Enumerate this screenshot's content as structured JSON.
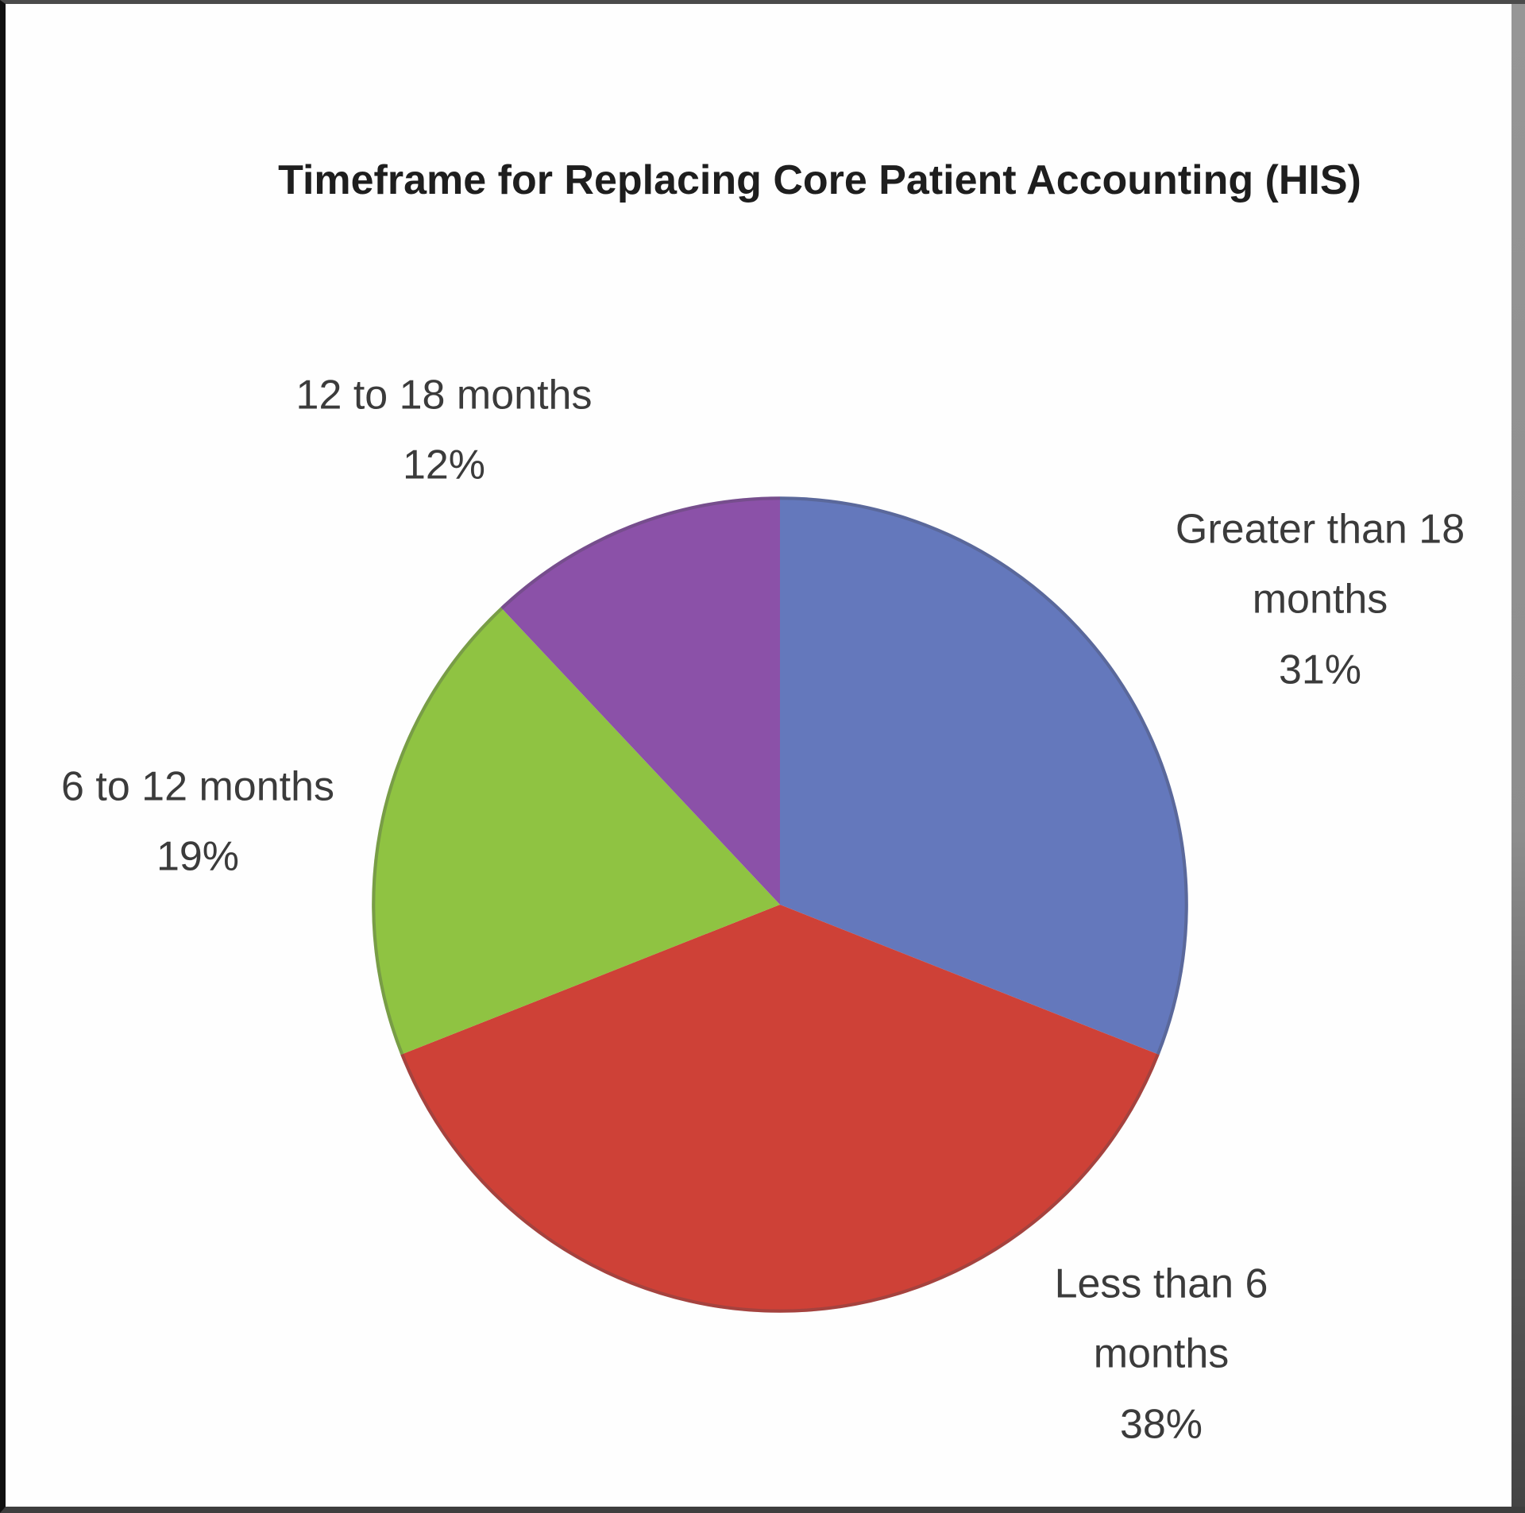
{
  "frame": {
    "background": "#fefefe",
    "border_left_color": "#101010",
    "border_top_color": "#4b4b4b",
    "border_bottom_color": "#3e3e3e",
    "scrollbar_color_top": "#969696",
    "scrollbar_color_bottom": "#444444"
  },
  "text": {
    "title_color": "#1e1e1e",
    "label_color": "#3b3b3b"
  },
  "chart_data": {
    "type": "pie",
    "title": "Timeframe for Replacing Core Patient Accounting (HIS)",
    "unit": "%",
    "start_angle_deg": -90,
    "direction": "clockwise",
    "legend": "none",
    "labels_position": "outside",
    "categories": [
      "Greater than 18 months",
      "Less than 6 months",
      "6 to 12 months",
      "12 to 18 months"
    ],
    "values": [
      31,
      38,
      19,
      12
    ],
    "slices": [
      {
        "name": "Greater than 18 months",
        "value": 31,
        "percent_label": "31%",
        "color": "#6478BC",
        "label_lines": [
          "Greater than 18",
          "months",
          "31%"
        ]
      },
      {
        "name": "Less than 6 months",
        "value": 38,
        "percent_label": "38%",
        "color": "#CE4137",
        "label_lines": [
          "Less than 6",
          "months",
          "38%"
        ]
      },
      {
        "name": "6 to 12 months",
        "value": 19,
        "percent_label": "19%",
        "color": "#8FC342",
        "label_lines": [
          "6 to 12 months",
          "19%"
        ]
      },
      {
        "name": "12 to 18 months",
        "value": 12,
        "percent_label": "12%",
        "color": "#8B51A8",
        "label_lines": [
          "12 to 18 months",
          "12%"
        ]
      }
    ]
  }
}
